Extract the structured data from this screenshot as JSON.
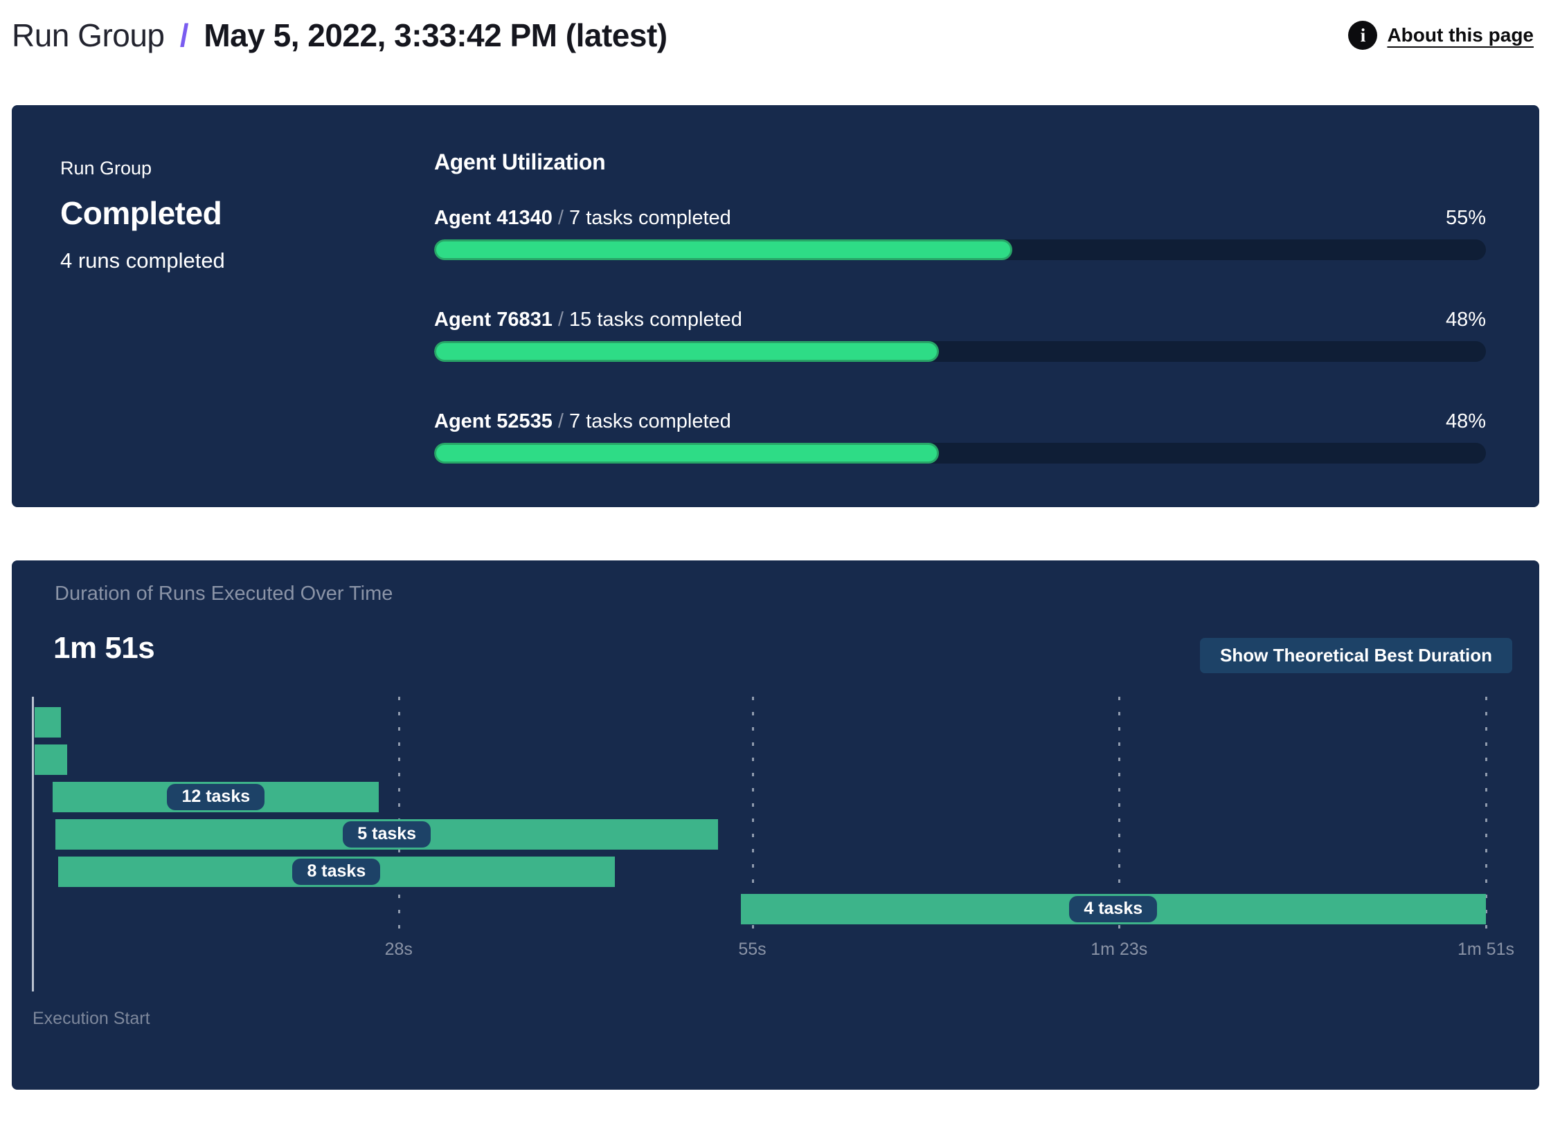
{
  "header": {
    "breadcrumb": "Run Group",
    "separator": "/",
    "title": "May 5, 2022, 3:33:42 PM (latest)",
    "about_link": "About this page",
    "info_icon_glyph": "i"
  },
  "colors": {
    "panel": "#172a4c",
    "track": "#0f1e36",
    "green_fill": "#2edc86",
    "green_border": "#28a567",
    "gantt_green": "#3db48a",
    "pill": "#1d4267",
    "accent_purple": "#7a5cf0",
    "muted": "#8b94a7"
  },
  "run_group_panel": {
    "label": "Run Group",
    "status": "Completed",
    "runs_completed": "4 runs completed",
    "utilization_title": "Agent Utilization",
    "separator": "/",
    "agents": [
      {
        "name": "Agent 41340",
        "tasks": "7 tasks completed",
        "percent_label": "55%",
        "percent": 55
      },
      {
        "name": "Agent 76831",
        "tasks": "15 tasks completed",
        "percent_label": "48%",
        "percent": 48
      },
      {
        "name": "Agent 52535",
        "tasks": "7 tasks completed",
        "percent_label": "48%",
        "percent": 48
      }
    ]
  },
  "duration_panel": {
    "title": "Duration of Runs Executed Over Time",
    "total_duration": "1m 51s",
    "button_label": "Show Theoretical Best Duration",
    "execution_start_label": "Execution Start"
  },
  "chart_data": {
    "type": "gantt",
    "title": "Duration of Runs Executed Over Time",
    "total_duration_label": "1m 51s",
    "x_unit": "seconds",
    "x_max_seconds": 111,
    "x_ticks": [
      {
        "label": "28s",
        "seconds": 28
      },
      {
        "label": "55s",
        "seconds": 55
      },
      {
        "label": "1m 23s",
        "seconds": 83
      },
      {
        "label": "1m 51s",
        "seconds": 111
      }
    ],
    "x_axis_start_label": "Execution Start",
    "runs": [
      {
        "label": "",
        "start_seconds": 0.2,
        "end_seconds": 2.2
      },
      {
        "label": "",
        "start_seconds": 0.2,
        "end_seconds": 2.7
      },
      {
        "label": "12 tasks",
        "start_seconds": 1.6,
        "end_seconds": 26.5
      },
      {
        "label": "5 tasks",
        "start_seconds": 1.8,
        "end_seconds": 52.4
      },
      {
        "label": "8 tasks",
        "start_seconds": 2.0,
        "end_seconds": 44.5
      },
      {
        "label": "4 tasks",
        "start_seconds": 54.1,
        "end_seconds": 111
      }
    ]
  }
}
